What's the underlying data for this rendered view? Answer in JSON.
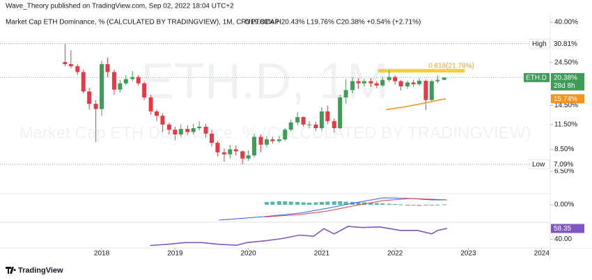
{
  "header": {
    "publisher": "Wave_Theory published on TradingView.com, Sep 02, 2022 18:04 UTC+2",
    "logo": "TradingView"
  },
  "chart_data": {
    "type": "candlestick",
    "title": "Market Cap ETH Dominance, % (CALCULATED BY TRADINGVIEW), 1M, CRYPTOCAP",
    "ohlc": "O19.83% H20.43% L19.76% C20.38% +0.54% (+2.71%)",
    "watermark": "ETH.D, 1M",
    "watermark_subtitle": "Market Cap ETH Dominance, % (CALCULATED BY TRADINGVIEW)",
    "symbol": "ETH.D",
    "last_label": "20.38%",
    "countdown": "28d 8h",
    "up_color": "#3f9b57",
    "down_color": "#e53945",
    "x": [
      2017.5,
      2017.58,
      2017.67,
      2017.75,
      2017.83,
      2017.92,
      2018.0,
      2018.08,
      2018.17,
      2018.25,
      2018.33,
      2018.42,
      2018.5,
      2018.58,
      2018.67,
      2018.75,
      2018.83,
      2018.92,
      2019.0,
      2019.08,
      2019.17,
      2019.25,
      2019.33,
      2019.42,
      2019.5,
      2019.58,
      2019.67,
      2019.75,
      2019.83,
      2019.92,
      2020.0,
      2020.08,
      2020.17,
      2020.25,
      2020.33,
      2020.42,
      2020.5,
      2020.58,
      2020.67,
      2020.75,
      2020.83,
      2020.92,
      2021.0,
      2021.08,
      2021.17,
      2021.25,
      2021.33,
      2021.42,
      2021.5,
      2021.58,
      2021.67,
      2021.75,
      2021.83,
      2021.92,
      2022.0,
      2022.08,
      2022.17,
      2022.25,
      2022.33,
      2022.42,
      2022.5,
      2022.58,
      2022.67
    ],
    "open": [
      24.6,
      24.0,
      23.4,
      21.8,
      17.2,
      14.8,
      13.9,
      24.0,
      21.8,
      17.6,
      19.0,
      20.0,
      20.5,
      19.0,
      16.0,
      13.5,
      12.8,
      11.5,
      10.8,
      10.2,
      10.9,
      10.5,
      11.0,
      11.2,
      10.3,
      9.2,
      8.2,
      8.0,
      8.5,
      8.3,
      7.6,
      7.9,
      9.9,
      9.0,
      9.6,
      9.4,
      9.6,
      10.8,
      11.8,
      12.6,
      11.5,
      11.5,
      11.0,
      13.5,
      12.0,
      11.0,
      16.0,
      17.5,
      19.5,
      19.0,
      19.5,
      19.0,
      18.5,
      19.8,
      20.5,
      19.5,
      18.3,
      19.2,
      18.8,
      19.6,
      15.5,
      19.5,
      19.83
    ],
    "high": [
      30.81,
      28.5,
      24.0,
      22.5,
      18.0,
      15.5,
      25.0,
      26.0,
      22.5,
      19.8,
      21.0,
      22.0,
      21.0,
      19.5,
      16.5,
      13.8,
      13.2,
      11.8,
      11.2,
      11.5,
      11.4,
      11.6,
      12.0,
      11.6,
      10.8,
      9.4,
      8.6,
      9.0,
      8.9,
      8.4,
      8.4,
      10.3,
      10.2,
      10.0,
      9.9,
      10.0,
      11.0,
      12.2,
      13.4,
      12.7,
      12.0,
      11.9,
      14.2,
      14.5,
      12.4,
      16.5,
      20.0,
      20.5,
      20.2,
      20.0,
      20.2,
      19.6,
      20.5,
      22.3,
      21.0,
      19.8,
      19.6,
      19.8,
      20.2,
      19.9,
      19.9,
      20.9,
      20.43
    ],
    "low": [
      23.4,
      22.8,
      21.0,
      16.8,
      13.8,
      9.3,
      12.8,
      20.5,
      16.5,
      17.0,
      18.6,
      19.5,
      18.5,
      15.5,
      13.0,
      12.0,
      10.5,
      10.2,
      9.5,
      9.9,
      10.1,
      10.2,
      10.7,
      9.8,
      8.8,
      7.8,
      7.3,
      7.6,
      7.9,
      7.09,
      7.4,
      7.7,
      8.2,
      8.7,
      9.1,
      9.2,
      9.4,
      10.6,
      11.4,
      11.2,
      11.0,
      10.6,
      10.7,
      11.6,
      10.4,
      10.9,
      14.8,
      16.8,
      17.8,
      18.3,
      18.2,
      17.9,
      18.2,
      19.3,
      18.7,
      17.4,
      17.8,
      18.2,
      18.4,
      13.7,
      15.1,
      19.0,
      19.76
    ],
    "close": [
      24.0,
      23.4,
      21.8,
      17.2,
      14.8,
      13.9,
      24.0,
      21.8,
      17.6,
      19.0,
      20.0,
      20.5,
      19.0,
      16.0,
      13.5,
      12.8,
      11.5,
      10.8,
      10.2,
      10.9,
      10.5,
      11.0,
      11.2,
      10.3,
      9.2,
      8.2,
      8.0,
      8.5,
      8.3,
      7.6,
      7.9,
      9.9,
      9.0,
      9.6,
      9.4,
      9.6,
      10.8,
      11.8,
      12.6,
      11.5,
      11.5,
      11.0,
      13.5,
      12.0,
      11.0,
      16.0,
      17.5,
      19.5,
      19.0,
      19.5,
      19.0,
      18.5,
      19.8,
      20.5,
      19.5,
      18.3,
      19.2,
      18.8,
      19.6,
      15.5,
      19.5,
      19.83,
      20.38
    ],
    "log_y": true,
    "ylim": [
      5,
      43.5
    ],
    "yticks": [
      {
        "value": 40,
        "label": "40.00%"
      },
      {
        "value": 24.5,
        "label": "24.50%"
      },
      {
        "value": 14.5,
        "label": "14.50%"
      },
      {
        "value": 11.5,
        "label": "11.50%"
      },
      {
        "value": 8.5,
        "label": "8.50%"
      },
      {
        "value": 6.5,
        "label": "6.50%"
      }
    ],
    "xlim": [
      2016.613,
      2024.116
    ],
    "xticks": [
      2018,
      2019,
      2020,
      2021,
      2022,
      2023,
      2024
    ],
    "grid": false,
    "levels": [
      {
        "name": "High",
        "value": 30.81,
        "label": "30.81%"
      },
      {
        "name": "Low",
        "value": 7.09,
        "label": "7.09%"
      }
    ],
    "fib": {
      "label": "0.618(21.76%)",
      "value": 21.76,
      "x": [
        2021.77,
        2022.95
      ],
      "color": "#f5c518"
    },
    "ma": {
      "x": [
        2021.88,
        2022.1,
        2022.31,
        2022.5,
        2022.69
      ],
      "values": [
        13.8,
        14.2,
        14.7,
        15.2,
        15.74
      ],
      "last_label": "15.74%",
      "color": "#f7931a"
    },
    "macd": {
      "ylim": [
        -2.4,
        1.5
      ],
      "yticks": [
        {
          "value": 0,
          "label": "0.00%"
        }
      ],
      "x": [
        2019.6,
        2020.22,
        2020.7,
        2021.08,
        2021.46,
        2021.84,
        2022.22,
        2022.5,
        2022.71
      ],
      "macd": [
        -2.2,
        -1.7,
        -1.2,
        -0.5,
        0.3,
        1.0,
        0.9,
        0.7,
        0.7
      ],
      "signal": [
        null,
        -1.75,
        -1.4,
        -0.9,
        -0.1,
        0.6,
        0.9,
        0.8,
        0.7
      ],
      "macd_color": "#2962ff",
      "signal_color": "#f23645",
      "hist_x": [
        2020.25,
        2020.33,
        2020.42,
        2020.5,
        2020.58,
        2020.67,
        2020.75,
        2020.83,
        2020.92,
        2021.0,
        2021.08,
        2021.17,
        2021.25,
        2021.33,
        2021.42,
        2021.5,
        2021.58,
        2021.67,
        2021.75,
        2021.83,
        2021.92,
        2022.0,
        2022.08,
        2022.17,
        2022.25,
        2022.33,
        2022.42,
        2022.5,
        2022.58,
        2022.67
      ],
      "hist": [
        0.4,
        0.45,
        0.5,
        0.5,
        0.45,
        0.4,
        0.35,
        0.3,
        0.35,
        0.4,
        0.45,
        0.5,
        0.5,
        0.45,
        0.4,
        0.4,
        0.35,
        0.3,
        0.25,
        0.2,
        0.15,
        0.1,
        0.05,
        -0.05,
        -0.1,
        -0.15,
        -0.1,
        -0.05,
        0.02,
        0.04
      ],
      "hist_up_color": "#26a69a",
      "hist_down_color": "#ef5350"
    },
    "rsi": {
      "ylim": [
        26,
        68
      ],
      "yticks": [
        {
          "value": 40,
          "label": "40.00"
        }
      ],
      "x": [
        2018.66,
        2018.89,
        2019.13,
        2019.37,
        2019.6,
        2019.84,
        2019.98,
        2020.22,
        2020.46,
        2020.7,
        2020.89,
        2021.03,
        2021.17,
        2021.36,
        2021.55,
        2021.79,
        2021.93,
        2022.07,
        2022.31,
        2022.5,
        2022.58,
        2022.71
      ],
      "values": [
        29,
        31,
        34,
        34,
        31,
        29.5,
        34,
        37,
        41,
        47,
        45,
        58,
        49,
        62,
        60,
        61,
        58,
        55,
        55,
        49,
        55,
        58.35
      ],
      "last_label": "58.35",
      "color": "#7e57c2"
    }
  }
}
